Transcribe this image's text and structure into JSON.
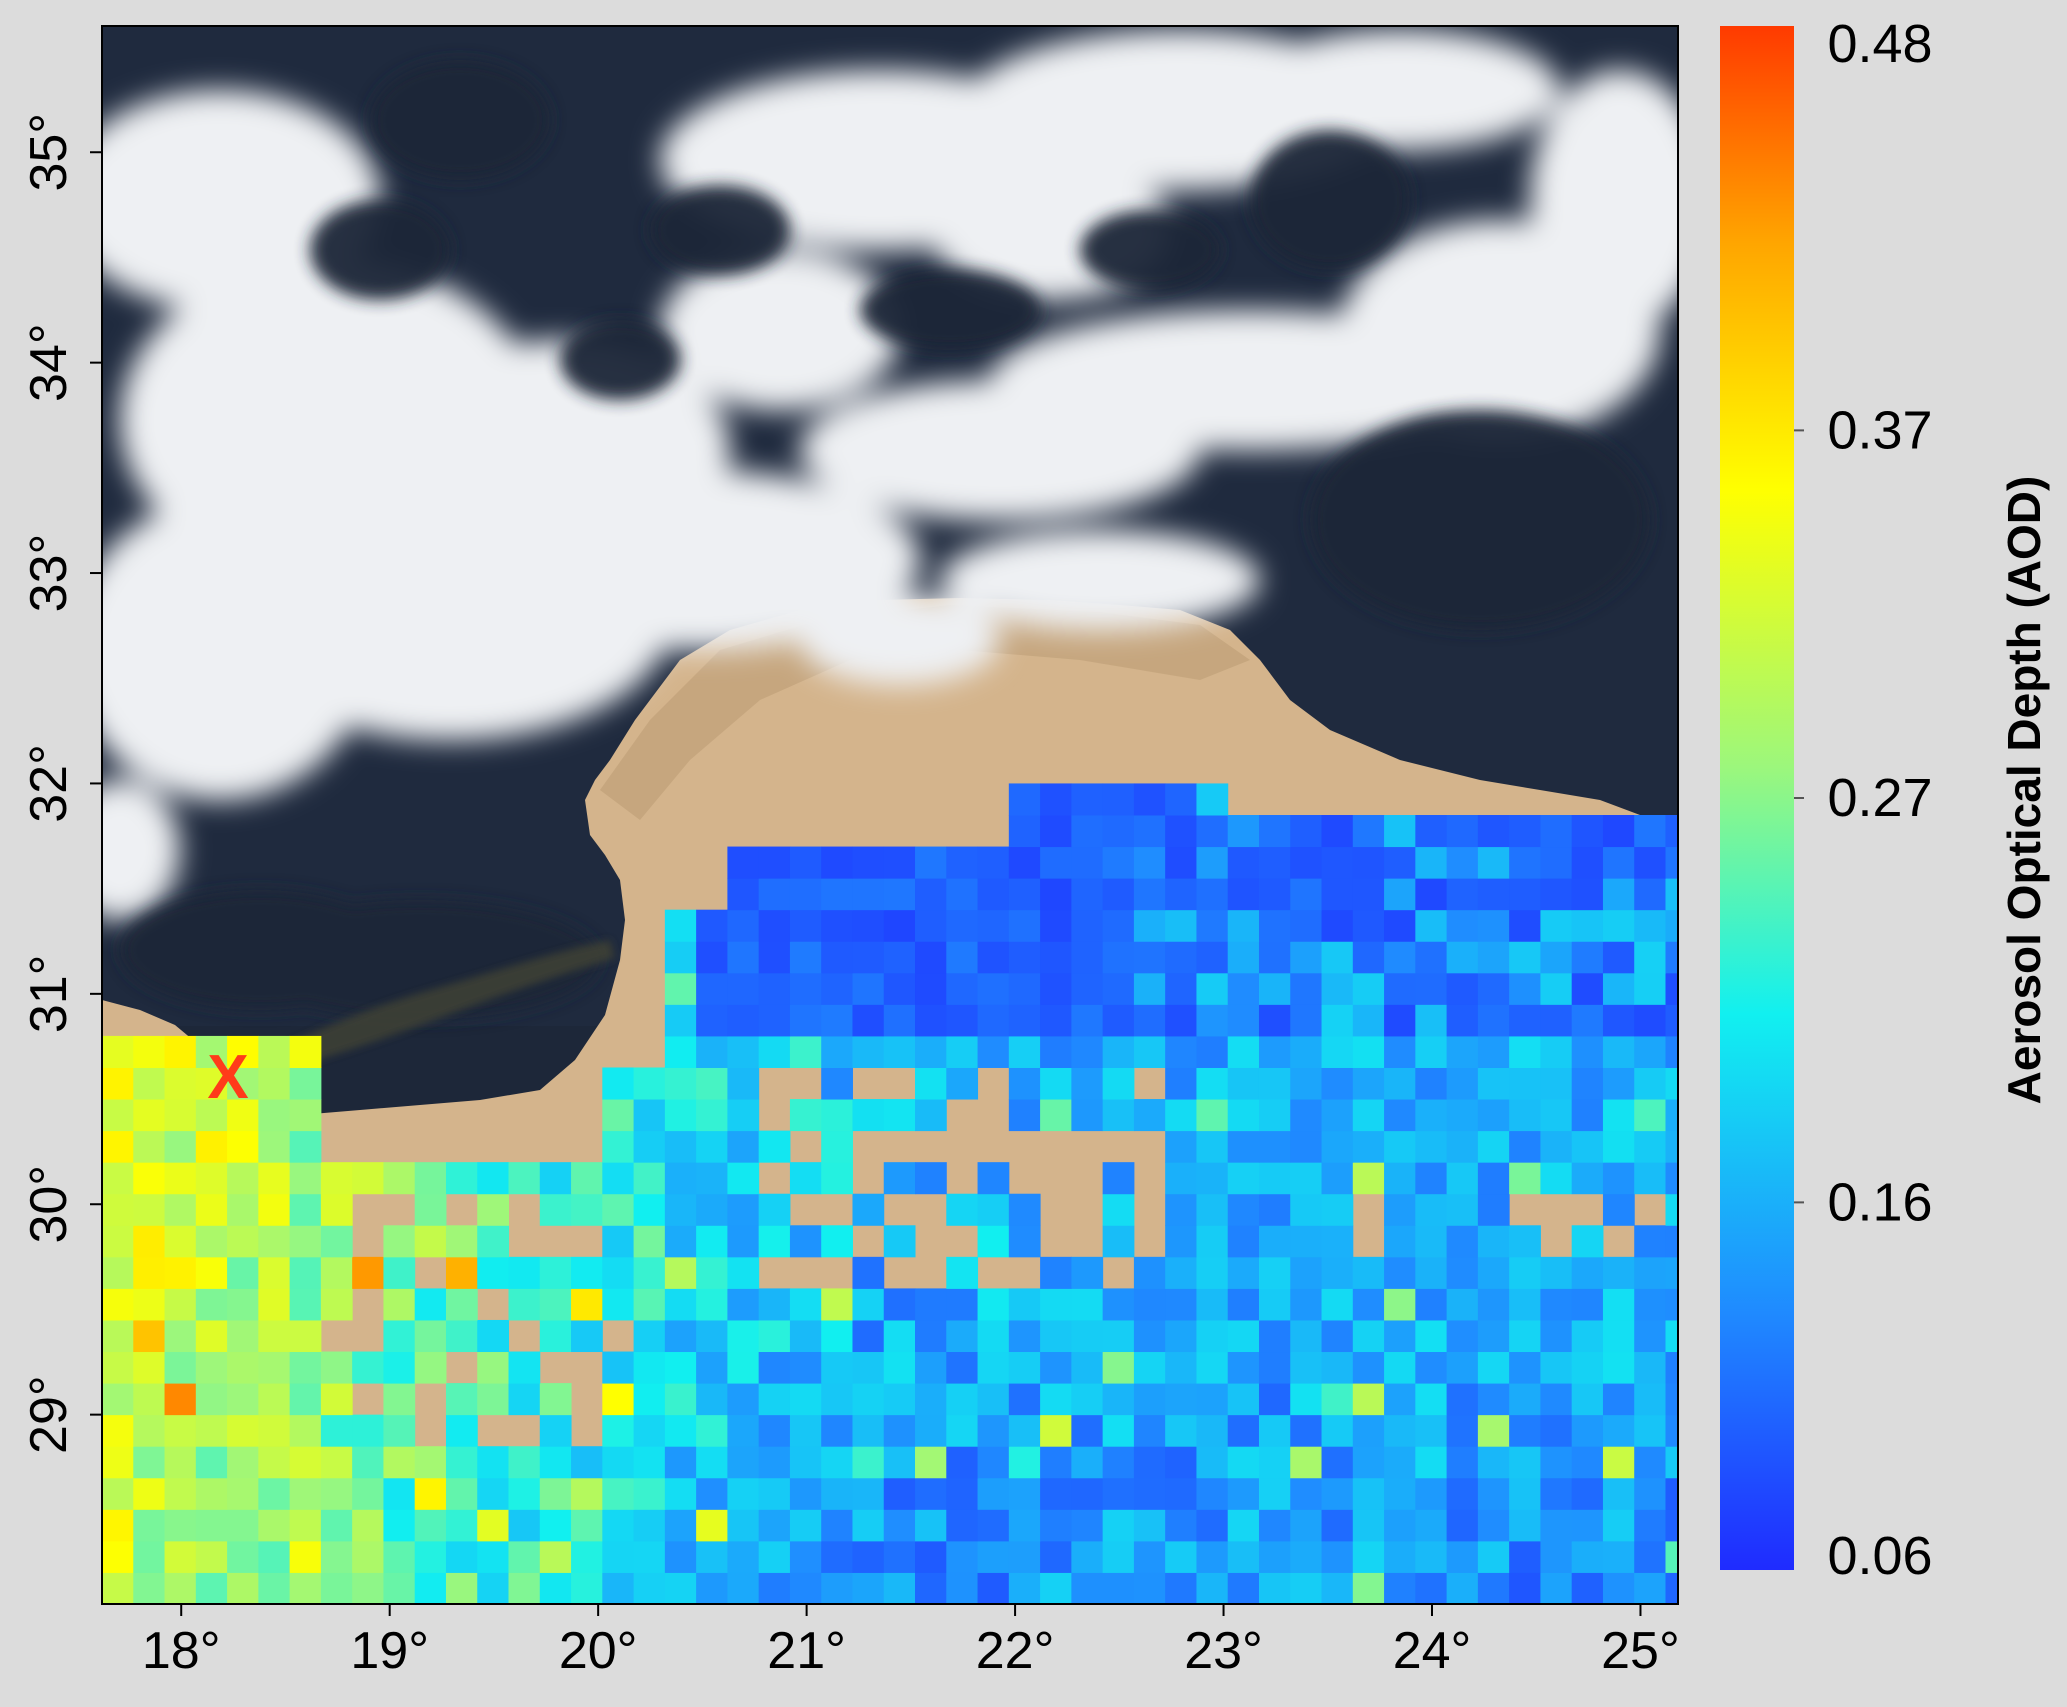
{
  "map": {
    "x_axis": {
      "unit": "°",
      "range": [
        17.62,
        25.18
      ],
      "ticks": [
        {
          "value": 18,
          "label": "18°"
        },
        {
          "value": 19,
          "label": "19°"
        },
        {
          "value": 20,
          "label": "20°"
        },
        {
          "value": 21,
          "label": "21°"
        },
        {
          "value": 22,
          "label": "22°"
        },
        {
          "value": 23,
          "label": "23°"
        },
        {
          "value": 24,
          "label": "24°"
        },
        {
          "value": 25,
          "label": "25°"
        }
      ]
    },
    "y_axis": {
      "unit": "°",
      "range": [
        28.1,
        35.6
      ],
      "ticks": [
        {
          "value": 29,
          "label": "29°"
        },
        {
          "value": 30,
          "label": "30°"
        },
        {
          "value": 31,
          "label": "31°"
        },
        {
          "value": 32,
          "label": "32°"
        },
        {
          "value": 33,
          "label": "33°"
        },
        {
          "value": 34,
          "label": "34°"
        },
        {
          "value": 35,
          "label": "35°"
        }
      ]
    },
    "marker": {
      "label": "X",
      "lon": 18.25,
      "lat": 30.6,
      "color": "#ff3b1a"
    },
    "background": {
      "sea_color": "#1d2739",
      "land_color": "#d4b48c",
      "cloud_color": "#eef0f3",
      "smoke_plume_color": "#3d4036"
    },
    "aod_grid": {
      "cell_deg": 0.15,
      "north_limit_lat": 31.9,
      "pattern": "blue low AOD over the north-east coastal plateau; cyan/green to the south-east; yellow-orange high AOD in the south-west near the plume source"
    }
  },
  "colorbar": {
    "label": "Aerosol Optical Depth (AOD)",
    "min": 0.06,
    "max": 0.48,
    "tick_labels": [
      "0.48",
      "0.37",
      "0.27",
      "0.16",
      "0.06"
    ],
    "tick_values": [
      0.48,
      0.37,
      0.27,
      0.16,
      0.06
    ],
    "stops": [
      "#1f2bff",
      "#1f8cff",
      "#11f0f0",
      "#9cf77c",
      "#ffff00",
      "#ffa500",
      "#ff3a00"
    ]
  }
}
